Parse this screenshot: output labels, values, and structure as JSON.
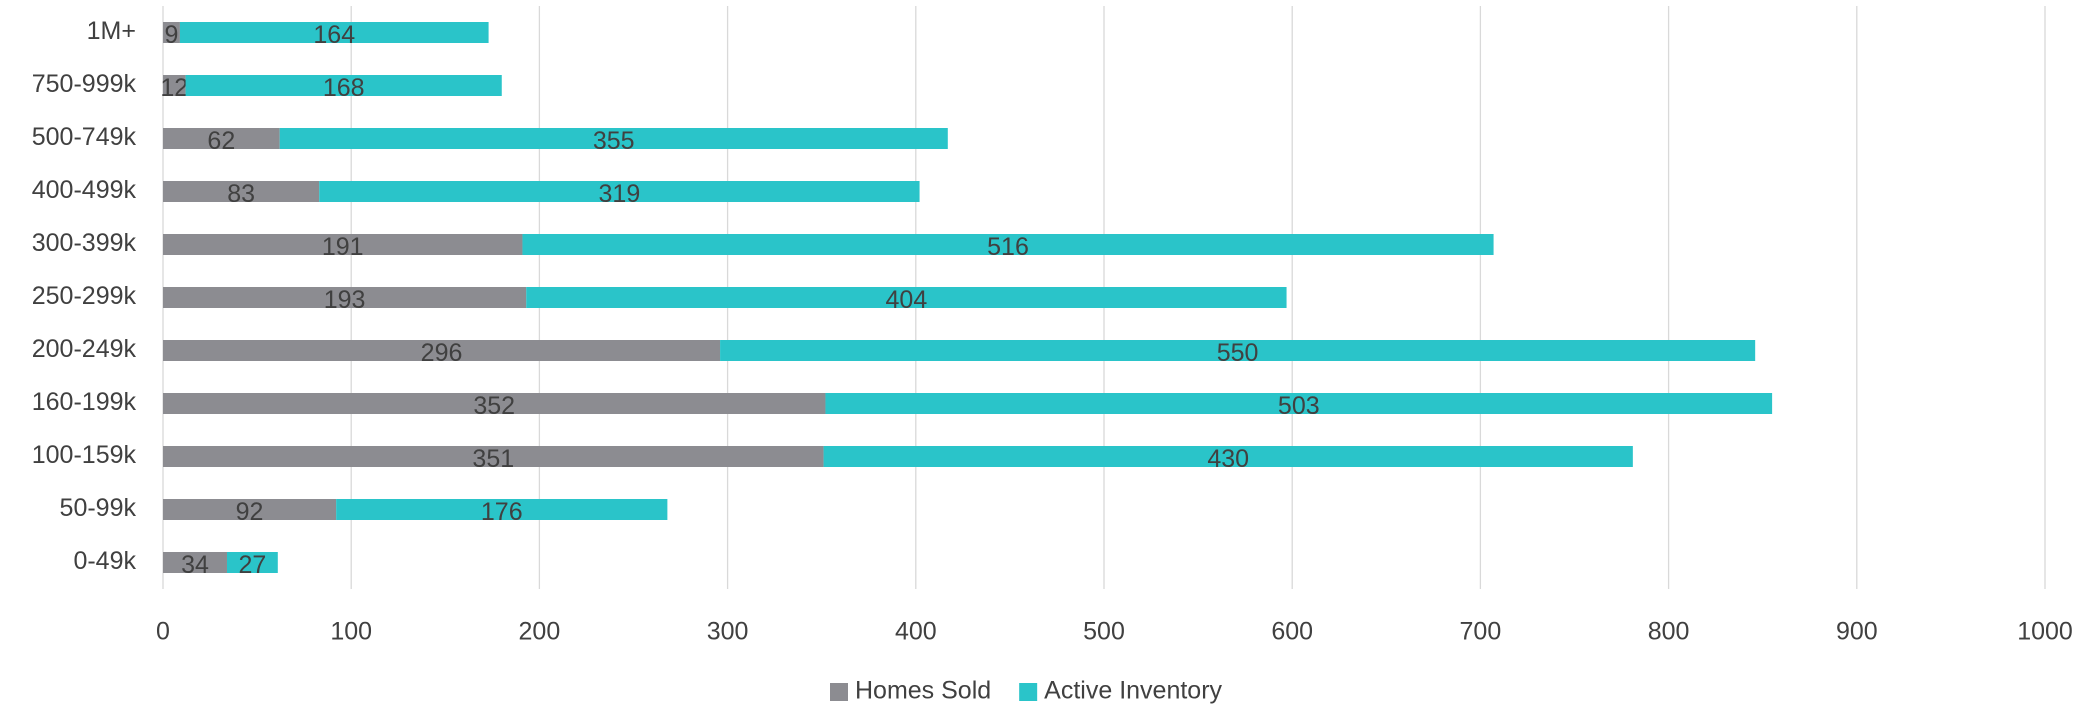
{
  "chart_data": {
    "type": "stacked-bar-horizontal",
    "categories": [
      "0-49k",
      "50-99k",
      "100-159k",
      "160-199k",
      "200-249k",
      "250-299k",
      "300-399k",
      "400-499k",
      "500-749k",
      "750-999k",
      "1M+"
    ],
    "series": [
      {
        "name": "Homes Sold",
        "color": "#8c8c91",
        "values": [
          34,
          92,
          351,
          352,
          296,
          193,
          191,
          83,
          62,
          12,
          9
        ]
      },
      {
        "name": "Active Inventory",
        "color": "#2ac4c9",
        "values": [
          27,
          176,
          430,
          503,
          550,
          404,
          516,
          319,
          355,
          168,
          164
        ]
      }
    ],
    "xlim": [
      0,
      1000
    ],
    "xticks": [
      0,
      100,
      200,
      300,
      400,
      500,
      600,
      700,
      800,
      900,
      1000
    ],
    "grid": true,
    "legend": "bottom"
  }
}
